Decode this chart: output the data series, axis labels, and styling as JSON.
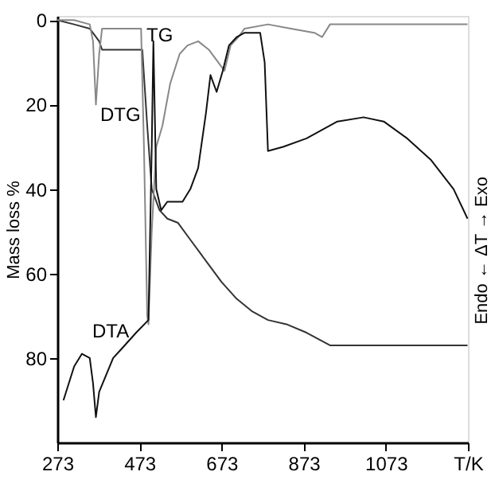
{
  "chart_data": {
    "type": "line",
    "ylabel": "Mass loss %",
    "y2label": "Endo ← ΔT → Exo",
    "xlim": [
      273,
      1273
    ],
    "ylim": [
      100,
      -1
    ],
    "xticks": [
      273,
      473,
      673,
      873,
      1073,
      {
        "value": 1273,
        "label": "T/K"
      }
    ],
    "yticks": [
      0,
      20,
      40,
      60,
      80
    ],
    "grid": false,
    "marker": "none",
    "line_style": "solid",
    "series": [
      {
        "name": "TG",
        "color": "#333333",
        "x": [
          273,
          314,
          352,
          375,
          382,
          428,
          480,
          492,
          503,
          522,
          541,
          567,
          597,
          635,
          673,
          710,
          748,
          786,
          831,
          880,
          937,
          1031,
          1144,
          1272
        ],
        "values": [
          0,
          1,
          2,
          5,
          7,
          7,
          7,
          25,
          40,
          45,
          47,
          48,
          52,
          57,
          62,
          66,
          69,
          71,
          72,
          74,
          77,
          77,
          77,
          77
        ]
      },
      {
        "name": "DTG",
        "color": "#888888",
        "x": [
          273,
          314,
          352,
          360,
          367,
          375,
          382,
          428,
          477,
          484,
          492,
          495,
          503,
          514,
          529,
          548,
          571,
          590,
          616,
          642,
          665,
          680,
          695,
          714,
          729,
          786,
          842,
          899,
          918,
          937,
          1031,
          1144,
          1272
        ],
        "values": [
          0,
          0,
          1,
          5,
          20,
          8,
          2,
          2,
          2,
          30,
          70,
          72,
          50,
          30,
          25,
          15,
          8,
          6,
          5,
          7,
          10,
          12,
          6,
          4,
          2,
          1,
          2,
          3,
          4,
          1,
          1,
          1,
          1
        ]
      },
      {
        "name": "DTA",
        "color": "#111111",
        "x": [
          288,
          314,
          333,
          352,
          360,
          367,
          375,
          409,
          428,
          465,
          495,
          503,
          507,
          514,
          526,
          541,
          578,
          597,
          616,
          635,
          646,
          661,
          676,
          691,
          710,
          729,
          767,
          778,
          786,
          823,
          880,
          955,
          1019,
          1068,
          1125,
          1182,
          1238,
          1272
        ],
        "values": [
          90,
          82,
          79,
          80,
          86,
          94,
          88,
          80,
          78,
          74,
          71,
          30,
          5,
          40,
          45,
          43,
          43,
          40,
          35,
          22,
          13,
          17,
          12,
          6,
          4,
          3,
          3,
          10,
          31,
          30,
          28,
          24,
          23,
          24,
          28,
          33,
          40,
          47
        ]
      }
    ]
  }
}
